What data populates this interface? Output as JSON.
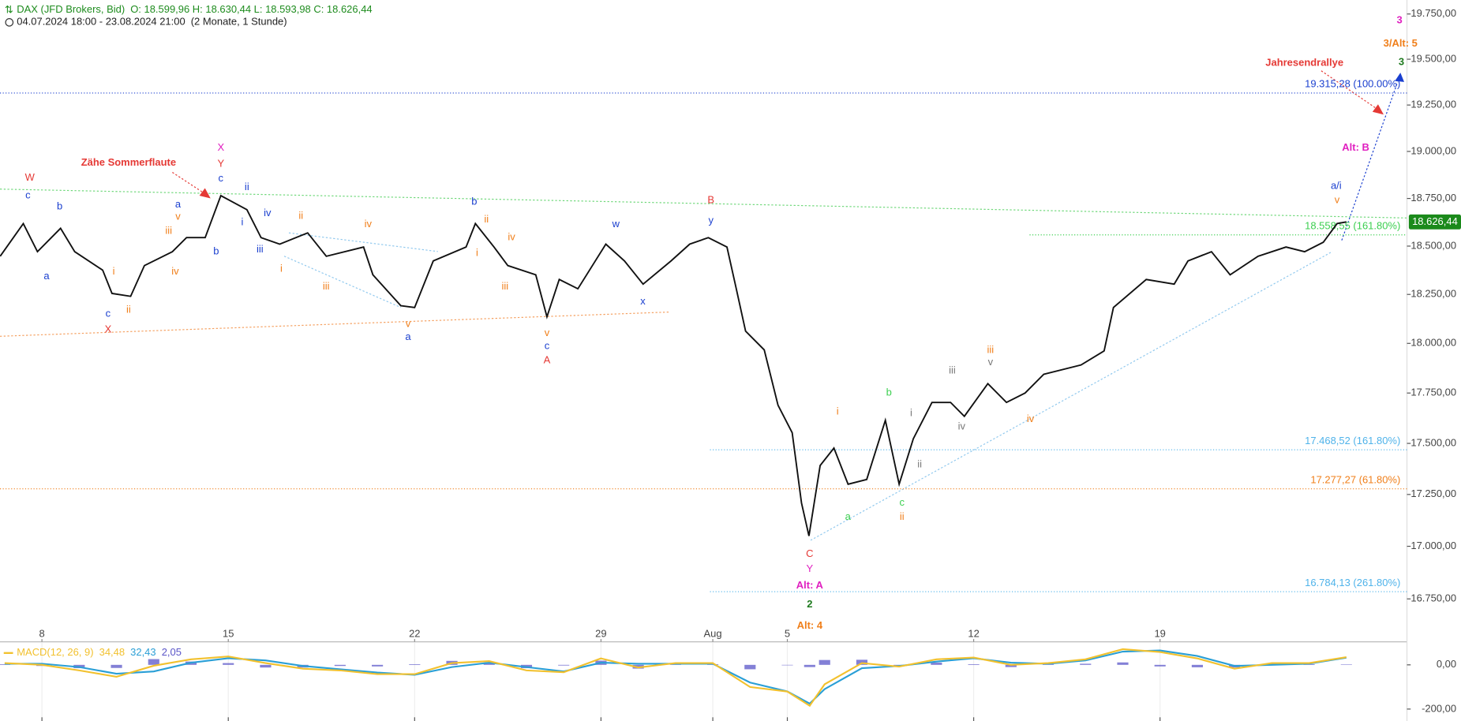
{
  "header": {
    "symbol": "DAX (JFD Brokers, Bid)",
    "ohlc": "O: 18.599,96  H: 18.630,44  L: 18.593,98  C: 18.626,44",
    "range": "04.07.2024 18:00 - 23.08.2024 21:00",
    "span": "(2 Monate, 1 Stunde)"
  },
  "chart_data": [
    {
      "type": "line",
      "log_scale": true,
      "xlim": [
        0.875,
        38.625
      ],
      "xticks": [
        {
          "value": 2,
          "label": "8"
        },
        {
          "value": 7,
          "label": "15"
        },
        {
          "value": 12,
          "label": "22"
        },
        {
          "value": 17,
          "label": "29"
        },
        {
          "value": 20,
          "label": "Aug"
        },
        {
          "value": 22,
          "label": "5"
        },
        {
          "value": 27,
          "label": "12"
        },
        {
          "value": 32,
          "label": "19"
        }
      ],
      "ylim": [
        16553,
        19828
      ],
      "yticks": [
        {
          "value": 19750,
          "label": "19.750,00"
        },
        {
          "value": 19500,
          "label": "19.500,00"
        },
        {
          "value": 19250,
          "label": "19.250,00"
        },
        {
          "value": 19000,
          "label": "19.000,00"
        },
        {
          "value": 18750,
          "label": "18.750,00"
        },
        {
          "value": 18500,
          "label": "18.500,00"
        },
        {
          "value": 18250,
          "label": "18.250,00"
        },
        {
          "value": 18000,
          "label": "18.000,00"
        },
        {
          "value": 17750,
          "label": "17.750,00"
        },
        {
          "value": 17500,
          "label": "17.500,00"
        },
        {
          "value": 17250,
          "label": "17.250,00"
        },
        {
          "value": 17000,
          "label": "17.000,00"
        },
        {
          "value": 16750,
          "label": "16.750,00"
        }
      ],
      "series": [
        {
          "color": "#111111",
          "x": [
            0.88,
            1.5,
            1.88,
            2.5,
            2.88,
            3.63,
            3.88,
            4.38,
            4.75,
            5.5,
            5.88,
            6.38,
            6.8,
            7.5,
            7.88,
            8.38,
            9.13,
            9.63,
            10.63,
            10.88,
            11.63,
            12,
            12.5,
            13.38,
            13.63,
            14.13,
            14.5,
            15.25,
            15.55,
            15.88,
            16.38,
            17.13,
            17.63,
            18.13,
            18.88,
            19.38,
            19.88,
            20.38,
            20.63,
            20.88,
            21.38,
            21.75,
            22.13,
            22.38,
            22.58,
            22.88,
            23.25,
            23.63,
            24.13,
            24.63,
            25,
            25.38,
            25.88,
            26.38,
            26.75,
            27.38,
            27.88,
            28.38,
            28.88,
            29.88,
            30.5,
            30.75,
            31.63,
            32.38,
            32.75,
            33.38,
            33.88,
            34.63,
            35.38,
            35.88,
            36.38,
            36.75,
            37
          ],
          "values": [
            18447,
            18618,
            18471,
            18593,
            18471,
            18375,
            18255,
            18240,
            18399,
            18471,
            18544,
            18544,
            18765,
            18691,
            18544,
            18510,
            18569,
            18447,
            18495,
            18351,
            18192,
            18183,
            18423,
            18495,
            18618,
            18495,
            18399,
            18351,
            18135,
            18327,
            18279,
            18510,
            18423,
            18303,
            18423,
            18510,
            18544,
            18495,
            18279,
            18062,
            17967,
            17689,
            17553,
            17209,
            17050,
            17391,
            17477,
            17300,
            17323,
            17614,
            17300,
            17523,
            17703,
            17703,
            17634,
            17797,
            17703,
            17750,
            17844,
            17891,
            17962,
            18183,
            18327,
            18303,
            18423,
            18471,
            18351,
            18447,
            18495,
            18471,
            18520,
            18618,
            18626.44
          ]
        }
      ],
      "last_value": {
        "value": 18626.44,
        "label": "18.626,44"
      },
      "levels": [
        {
          "value": 19315.28,
          "label": "19.315,28 (100.00%)",
          "color": "#1a3fcf"
        },
        {
          "value": 18558.55,
          "label": "18.558,55 (161.80%)",
          "color": "#3ccf50"
        },
        {
          "value": 17468.52,
          "label": "17.468,52 (161.80%)",
          "color": "#4fb3ea"
        },
        {
          "value": 17277.27,
          "label": "17.277,27 (61.80%)",
          "color": "#f07f1a"
        },
        {
          "value": 16784.13,
          "label": "16.784,13 (261.80%)",
          "color": "#4fb3ea"
        }
      ],
      "annotations": [
        {
          "text": "W",
          "color": "#e53935"
        },
        {
          "text": "c",
          "color": "#1a3fcf"
        },
        {
          "text": "b",
          "color": "#1a3fcf"
        },
        {
          "text": "a",
          "color": "#1a3fcf"
        },
        {
          "text": "i",
          "color": "#f07f1a"
        },
        {
          "text": "c",
          "color": "#1a3fcf"
        },
        {
          "text": "X",
          "color": "#e53935"
        },
        {
          "text": "ii",
          "color": "#f07f1a"
        },
        {
          "text": "Zähe Sommerflaute",
          "color": "#e53935"
        },
        {
          "text": "a",
          "color": "#1a3fcf"
        },
        {
          "text": "v",
          "color": "#f07f1a"
        },
        {
          "text": "iii",
          "color": "#f07f1a"
        },
        {
          "text": "iv",
          "color": "#f07f1a"
        },
        {
          "text": "X",
          "color": "#e020c0"
        },
        {
          "text": "Y",
          "color": "#e53935"
        },
        {
          "text": "c",
          "color": "#1a3fcf"
        },
        {
          "text": "b",
          "color": "#1a3fcf"
        },
        {
          "text": "i",
          "color": "#1a3fcf"
        },
        {
          "text": "ii",
          "color": "#1a3fcf"
        },
        {
          "text": "iii",
          "color": "#1a3fcf"
        },
        {
          "text": "iv",
          "color": "#1a3fcf"
        },
        {
          "text": "ii",
          "color": "#f07f1a"
        },
        {
          "text": "i",
          "color": "#f07f1a"
        },
        {
          "text": "iii",
          "color": "#f07f1a"
        },
        {
          "text": "iv",
          "color": "#f07f1a"
        },
        {
          "text": "v",
          "color": "#f07f1a"
        },
        {
          "text": "a",
          "color": "#1a3fcf"
        },
        {
          "text": "b",
          "color": "#1a3fcf"
        },
        {
          "text": "ii",
          "color": "#f07f1a"
        },
        {
          "text": "i",
          "color": "#f07f1a"
        },
        {
          "text": "iv",
          "color": "#f07f1a"
        },
        {
          "text": "iii",
          "color": "#f07f1a"
        },
        {
          "text": "v",
          "color": "#f07f1a"
        },
        {
          "text": "c",
          "color": "#1a3fcf"
        },
        {
          "text": "A",
          "color": "#e53935"
        },
        {
          "text": "w",
          "color": "#1a3fcf"
        },
        {
          "text": "x",
          "color": "#1a3fcf"
        },
        {
          "text": "B",
          "color": "#e53935"
        },
        {
          "text": "y",
          "color": "#1a3fcf"
        },
        {
          "text": "i",
          "color": "#f07f1a"
        },
        {
          "text": "b",
          "color": "#3ccf50"
        },
        {
          "text": "a",
          "color": "#3ccf50"
        },
        {
          "text": "c",
          "color": "#3ccf50"
        },
        {
          "text": "ii",
          "color": "#f07f1a"
        },
        {
          "text": "i",
          "color": "#777777"
        },
        {
          "text": "ii",
          "color": "#777777"
        },
        {
          "text": "iii",
          "color": "#777777"
        },
        {
          "text": "iv",
          "color": "#777777"
        },
        {
          "text": "iii",
          "color": "#f07f1a"
        },
        {
          "text": "v",
          "color": "#777777"
        },
        {
          "text": "iv",
          "color": "#f07f1a"
        },
        {
          "text": "C",
          "color": "#e53935"
        },
        {
          "text": "Y",
          "color": "#e020c0"
        },
        {
          "text": "Alt: A",
          "color": "#e020c0"
        },
        {
          "text": "2",
          "color": "#1e7a1e"
        },
        {
          "text": "Alt: 4",
          "color": "#f07f1a"
        },
        {
          "text": "3",
          "color": "#e020c0"
        },
        {
          "text": "3/Alt: 5",
          "color": "#f07f1a"
        },
        {
          "text": "3",
          "color": "#1e7a1e"
        },
        {
          "text": "Jahresendrallye",
          "color": "#e53935"
        },
        {
          "text": "Alt: B",
          "color": "#e020c0"
        },
        {
          "text": "a/i",
          "color": "#1a3fcf"
        },
        {
          "text": "v",
          "color": "#f07f1a"
        }
      ]
    },
    {
      "type": "macd",
      "title": "MACD(12, 26, 9)",
      "grid": true,
      "ylim": [
        -254,
        100
      ],
      "yticks": [
        {
          "value": 0,
          "label": "0,00"
        },
        {
          "value": -200,
          "label": "-200,00"
        }
      ],
      "x": [
        1,
        2,
        3,
        4,
        5,
        6,
        7,
        8,
        9,
        10,
        11,
        12,
        13,
        14,
        15,
        16,
        17,
        18,
        19,
        20,
        21,
        22,
        22.6,
        23,
        24,
        25,
        26,
        27,
        28,
        29,
        30,
        31,
        32,
        33,
        34,
        35,
        36,
        37
      ],
      "series": [
        {
          "color": "#f2c12e",
          "values": [
            8,
            0,
            -25,
            -54,
            -4,
            25,
            38,
            8,
            -17,
            -25,
            -42,
            -42,
            8,
            17,
            -25,
            -33,
            29,
            -12,
            8,
            8,
            -100,
            -121,
            -185,
            -88,
            8,
            -8,
            25,
            33,
            0,
            8,
            25,
            71,
            58,
            29,
            -17,
            8,
            8,
            34.48
          ]
        },
        {
          "color": "#2a9fd6",
          "values": [
            5,
            5,
            -10,
            -40,
            -30,
            10,
            30,
            20,
            -5,
            -20,
            -35,
            -45,
            -10,
            10,
            -10,
            -30,
            10,
            5,
            5,
            5,
            -80,
            -120,
            -175,
            -110,
            -15,
            -5,
            15,
            30,
            10,
            5,
            20,
            60,
            65,
            40,
            -5,
            0,
            5,
            32.43
          ]
        },
        {
          "color": "#5a55c8",
          "values": [
            3,
            -5,
            -15,
            -14,
            26,
            15,
            8,
            -12,
            -12,
            -5,
            -7,
            3,
            18,
            7,
            -15,
            -3,
            19,
            -17,
            3,
            3,
            -20,
            -1,
            -10,
            22,
            23,
            -3,
            10,
            3,
            -10,
            3,
            5,
            11,
            -7,
            -11,
            -12,
            8,
            3,
            2.05
          ]
        }
      ],
      "legend_labels": [
        "34,48",
        "32,43",
        "2,05"
      ]
    }
  ]
}
